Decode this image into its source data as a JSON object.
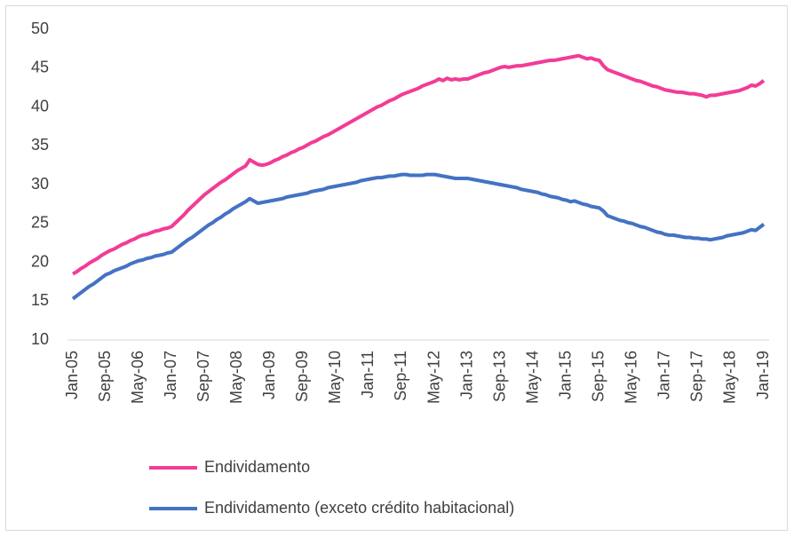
{
  "chart_data": {
    "type": "line",
    "categories": [
      "Jan-05",
      null,
      null,
      null,
      null,
      null,
      null,
      null,
      "Sep-05",
      null,
      null,
      null,
      null,
      null,
      null,
      null,
      "May-06",
      null,
      null,
      null,
      null,
      null,
      null,
      null,
      "Jan-07",
      null,
      null,
      null,
      null,
      null,
      null,
      null,
      "Sep-07",
      null,
      null,
      null,
      null,
      null,
      null,
      null,
      "May-08",
      null,
      null,
      null,
      null,
      null,
      null,
      null,
      "Jan-09",
      null,
      null,
      null,
      null,
      null,
      null,
      null,
      "Sep-09",
      null,
      null,
      null,
      null,
      null,
      null,
      null,
      "May-10",
      null,
      null,
      null,
      null,
      null,
      null,
      null,
      "Jan-11",
      null,
      null,
      null,
      null,
      null,
      null,
      null,
      "Sep-11",
      null,
      null,
      null,
      null,
      null,
      null,
      null,
      "May-12",
      null,
      null,
      null,
      null,
      null,
      null,
      null,
      "Jan-13",
      null,
      null,
      null,
      null,
      null,
      null,
      null,
      "Sep-13",
      null,
      null,
      null,
      null,
      null,
      null,
      null,
      "May-14",
      null,
      null,
      null,
      null,
      null,
      null,
      null,
      "Jan-15",
      null,
      null,
      null,
      null,
      null,
      null,
      null,
      "Sep-15",
      null,
      null,
      null,
      null,
      null,
      null,
      null,
      "May-16",
      null,
      null,
      null,
      null,
      null,
      null,
      null,
      "Jan-17",
      null,
      null,
      null,
      null,
      null,
      null,
      null,
      "Sep-17",
      null,
      null,
      null,
      null,
      null,
      null,
      null,
      "May-18",
      null,
      null,
      null,
      null,
      null,
      null,
      null,
      "Jan-19"
    ],
    "series": [
      {
        "name": "Endividamento",
        "color": "#f23c96",
        "values": [
          18.5,
          18.8,
          19.2,
          19.5,
          19.9,
          20.2,
          20.5,
          20.9,
          21.2,
          21.5,
          21.7,
          22.0,
          22.3,
          22.5,
          22.8,
          23.0,
          23.3,
          23.5,
          23.6,
          23.8,
          24.0,
          24.1,
          24.3,
          24.4,
          24.6,
          25.1,
          25.6,
          26.1,
          26.7,
          27.2,
          27.7,
          28.2,
          28.7,
          29.1,
          29.5,
          29.9,
          30.3,
          30.6,
          31.0,
          31.4,
          31.8,
          32.1,
          32.4,
          33.2,
          32.9,
          32.6,
          32.5,
          32.6,
          32.8,
          33.1,
          33.3,
          33.6,
          33.8,
          34.1,
          34.3,
          34.6,
          34.8,
          35.1,
          35.4,
          35.6,
          35.9,
          36.2,
          36.4,
          36.7,
          37.0,
          37.3,
          37.6,
          37.9,
          38.2,
          38.5,
          38.8,
          39.1,
          39.4,
          39.7,
          40.0,
          40.2,
          40.5,
          40.8,
          41.0,
          41.3,
          41.6,
          41.8,
          42.0,
          42.2,
          42.4,
          42.7,
          42.9,
          43.1,
          43.3,
          43.6,
          43.4,
          43.7,
          43.5,
          43.6,
          43.5,
          43.6,
          43.6,
          43.8,
          44.0,
          44.2,
          44.4,
          44.5,
          44.7,
          44.9,
          45.1,
          45.2,
          45.1,
          45.2,
          45.3,
          45.3,
          45.4,
          45.5,
          45.6,
          45.7,
          45.8,
          45.9,
          46.0,
          46.0,
          46.1,
          46.2,
          46.3,
          46.4,
          46.5,
          46.6,
          46.4,
          46.2,
          46.3,
          46.1,
          46.0,
          45.3,
          44.8,
          44.6,
          44.4,
          44.2,
          44.0,
          43.8,
          43.6,
          43.4,
          43.3,
          43.1,
          42.9,
          42.7,
          42.6,
          42.4,
          42.2,
          42.1,
          42.0,
          41.9,
          41.9,
          41.8,
          41.7,
          41.7,
          41.6,
          41.5,
          41.3,
          41.5,
          41.5,
          41.6,
          41.7,
          41.8,
          41.9,
          42.0,
          42.1,
          42.3,
          42.5,
          42.8,
          42.7,
          43.0,
          43.4
        ]
      },
      {
        "name": "Endividamento (exceto crédito habitacional)",
        "color": "#4472c4",
        "values": [
          15.3,
          15.7,
          16.1,
          16.5,
          16.9,
          17.2,
          17.6,
          18.0,
          18.4,
          18.6,
          18.9,
          19.1,
          19.3,
          19.5,
          19.8,
          20.0,
          20.2,
          20.3,
          20.5,
          20.6,
          20.8,
          20.9,
          21.0,
          21.2,
          21.3,
          21.7,
          22.1,
          22.5,
          22.9,
          23.2,
          23.6,
          24.0,
          24.4,
          24.8,
          25.1,
          25.5,
          25.8,
          26.2,
          26.5,
          26.9,
          27.2,
          27.5,
          27.8,
          28.2,
          27.9,
          27.6,
          27.7,
          27.8,
          27.9,
          28.0,
          28.1,
          28.2,
          28.4,
          28.5,
          28.6,
          28.7,
          28.8,
          28.9,
          29.1,
          29.2,
          29.3,
          29.4,
          29.6,
          29.7,
          29.8,
          29.9,
          30.0,
          30.1,
          30.2,
          30.3,
          30.5,
          30.6,
          30.7,
          30.8,
          30.9,
          30.9,
          31.0,
          31.1,
          31.1,
          31.2,
          31.3,
          31.3,
          31.2,
          31.2,
          31.2,
          31.2,
          31.3,
          31.3,
          31.3,
          31.2,
          31.1,
          31.0,
          30.9,
          30.8,
          30.8,
          30.8,
          30.8,
          30.7,
          30.6,
          30.5,
          30.4,
          30.3,
          30.2,
          30.1,
          30.0,
          29.9,
          29.8,
          29.7,
          29.6,
          29.4,
          29.3,
          29.2,
          29.1,
          29.0,
          28.8,
          28.7,
          28.5,
          28.4,
          28.3,
          28.1,
          28.0,
          27.8,
          27.9,
          27.7,
          27.5,
          27.4,
          27.2,
          27.1,
          27.0,
          26.6,
          26.0,
          25.8,
          25.6,
          25.4,
          25.3,
          25.1,
          25.0,
          24.8,
          24.6,
          24.5,
          24.3,
          24.1,
          23.9,
          23.8,
          23.6,
          23.5,
          23.5,
          23.4,
          23.3,
          23.2,
          23.2,
          23.1,
          23.1,
          23.0,
          23.0,
          22.9,
          23.0,
          23.1,
          23.2,
          23.4,
          23.5,
          23.6,
          23.7,
          23.8,
          24.0,
          24.2,
          24.1,
          24.5,
          24.9
        ]
      }
    ],
    "ylim": [
      10,
      50
    ],
    "yticks": [
      10,
      15,
      20,
      25,
      30,
      35,
      40,
      45,
      50
    ],
    "grid": false,
    "legend": "bottom"
  }
}
